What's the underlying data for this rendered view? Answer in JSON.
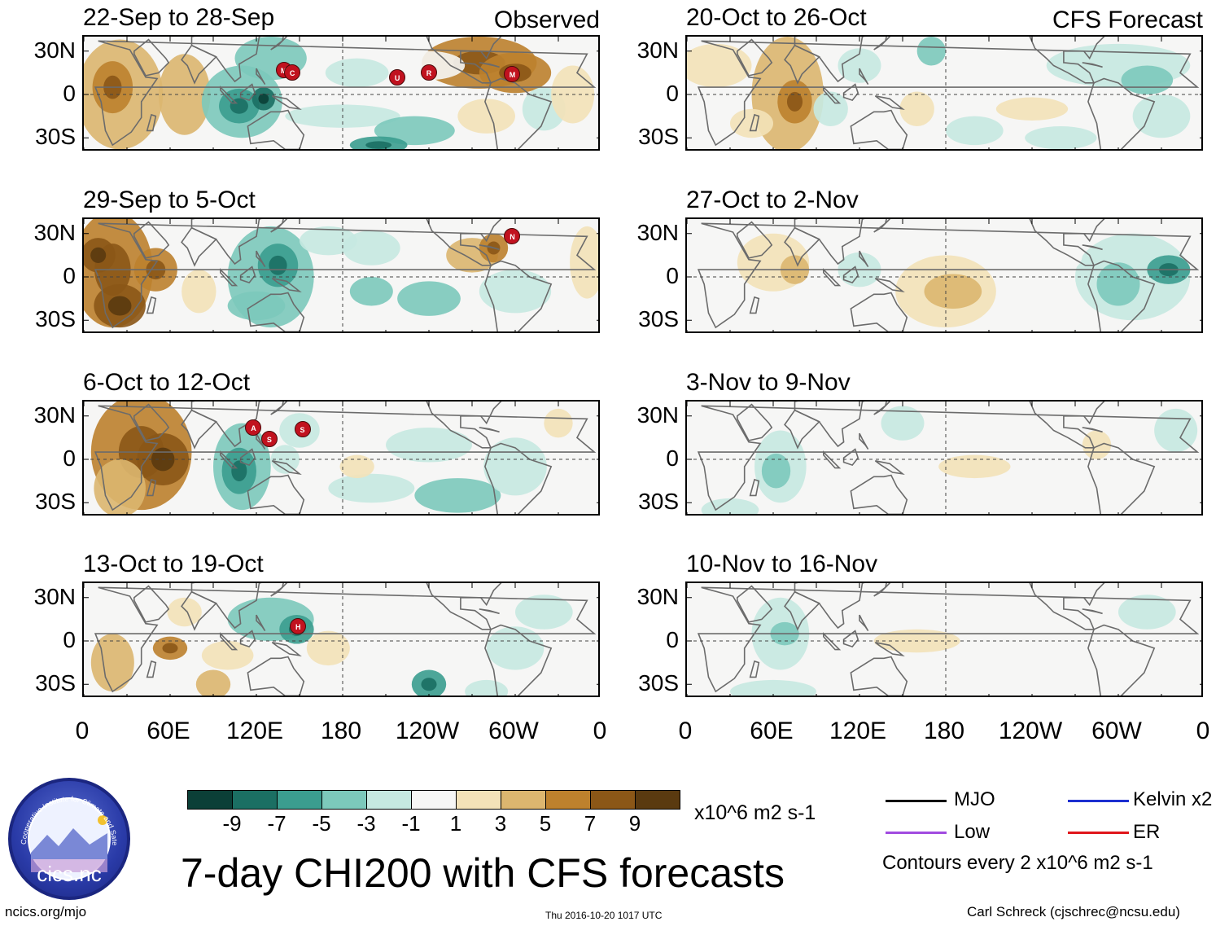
{
  "chart_data": {
    "type": "heatmap",
    "title": "7-day CHI200 with CFS forecasts",
    "units": "x10^6 m2 s-1",
    "lat_ticks": [
      "30N",
      "0",
      "30S"
    ],
    "lon_ticks": [
      "0",
      "60E",
      "120E",
      "180",
      "120W",
      "60W",
      "0"
    ],
    "column_labels": [
      "Observed",
      "CFS Forecast"
    ],
    "colorbar": {
      "ticks": [
        "-9",
        "-7",
        "-5",
        "-3",
        "-1",
        "1",
        "3",
        "5",
        "7",
        "9"
      ],
      "colors": [
        "#0b3f37",
        "#1b6f63",
        "#3b9d8f",
        "#7cc9bb",
        "#c6e9e1",
        "#f6f6f5",
        "#f3e2b8",
        "#dcb66f",
        "#bd812d",
        "#8b5717",
        "#5a3a10"
      ]
    },
    "panels": [
      {
        "period": "22-Sep to 28-Sep",
        "source": "Observed"
      },
      {
        "period": "29-Sep to 5-Oct",
        "source": "Observed"
      },
      {
        "period": "6-Oct to 12-Oct",
        "source": "Observed"
      },
      {
        "period": "13-Oct to 19-Oct",
        "source": "Observed"
      },
      {
        "period": "20-Oct to 26-Oct",
        "source": "CFS Forecast"
      },
      {
        "period": "27-Oct to 2-Nov",
        "source": "CFS Forecast"
      },
      {
        "period": "3-Nov to 9-Nov",
        "source": "CFS Forecast"
      },
      {
        "period": "10-Nov to 16-Nov",
        "source": "CFS Forecast"
      }
    ],
    "storm_markers": [
      {
        "panel": 0,
        "letter": "M"
      },
      {
        "panel": 0,
        "letter": "C"
      },
      {
        "panel": 0,
        "letter": "U"
      },
      {
        "panel": 0,
        "letter": "R"
      },
      {
        "panel": 0,
        "letter": "M"
      },
      {
        "panel": 1,
        "letter": "N"
      },
      {
        "panel": 2,
        "letter": "A"
      },
      {
        "panel": 2,
        "letter": "S"
      },
      {
        "panel": 2,
        "letter": "S"
      },
      {
        "panel": 3,
        "letter": "H"
      }
    ]
  },
  "legend": {
    "mjo": "MJO",
    "kelvin": "Kelvin x2",
    "low": "Low",
    "er": "ER",
    "contours_note": "Contours every 2 x10^6 m2 s-1",
    "colors": {
      "mjo": "#000000",
      "kelvin": "#1c2fd0",
      "low": "#a14be0",
      "er": "#e0161b"
    }
  },
  "logo": {
    "text": "cics.nc",
    "ring_text": "Cooperative Institute for Climate and Satellites"
  },
  "footer": {
    "site": "ncics.org/mjo",
    "timestamp": "Thu 2016-10-20 1017 UTC",
    "author": "Carl Schreck (cjschrec@ncsu.edu)"
  }
}
